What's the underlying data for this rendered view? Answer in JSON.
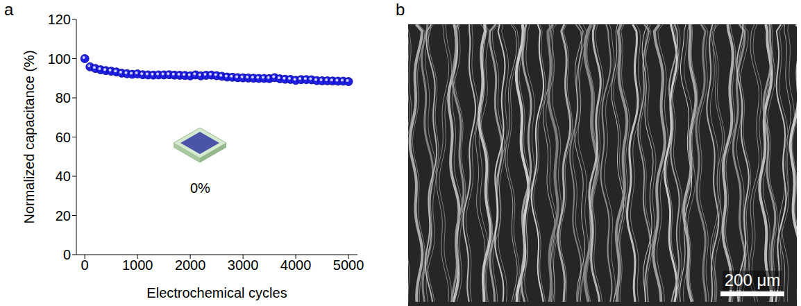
{
  "chart_data": {
    "type": "scatter",
    "panel": "a",
    "x_label": "Electrochemical cycles",
    "y_label": "Normalized capacitance (%)",
    "x": [
      0,
      100,
      200,
      300,
      400,
      500,
      600,
      700,
      800,
      900,
      1000,
      1100,
      1200,
      1300,
      1400,
      1500,
      1600,
      1700,
      1800,
      1900,
      2000,
      2100,
      2200,
      2300,
      2400,
      2500,
      2600,
      2700,
      2800,
      2900,
      3000,
      3100,
      3200,
      3300,
      3400,
      3500,
      3600,
      3700,
      3800,
      3900,
      4000,
      4100,
      4200,
      4300,
      4400,
      4500,
      4600,
      4700,
      4800,
      4900,
      5000
    ],
    "values": [
      100,
      95.8,
      95,
      94.3,
      93.9,
      93.6,
      93.2,
      92.6,
      92.3,
      92.0,
      92.2,
      91.8,
      91.7,
      91.6,
      91.7,
      91.7,
      91.8,
      91.6,
      91.5,
      91.4,
      91.2,
      91.7,
      91.2,
      91.5,
      91.6,
      91.3,
      91.0,
      90.6,
      90.5,
      90.3,
      90.2,
      90.1,
      90.0,
      89.9,
      89.9,
      89.8,
      90.3,
      89.7,
      89.5,
      89.4,
      88.9,
      89.3,
      89.3,
      89.2,
      88.8,
      88.7,
      88.7,
      88.6,
      88.5,
      88.5,
      88.3
    ],
    "color": "#2020e0",
    "marker": "circle",
    "xlim": [
      -160,
      5170
    ],
    "xticks": [
      0,
      1000,
      2000,
      3000,
      4000,
      5000
    ],
    "ylim": [
      0,
      120
    ],
    "yticks": [
      0,
      20,
      40,
      60,
      80,
      100,
      120
    ],
    "grid": false,
    "annotations": [
      "0%"
    ]
  },
  "image": {
    "panel": "b",
    "scale_bar": "200 μm"
  }
}
